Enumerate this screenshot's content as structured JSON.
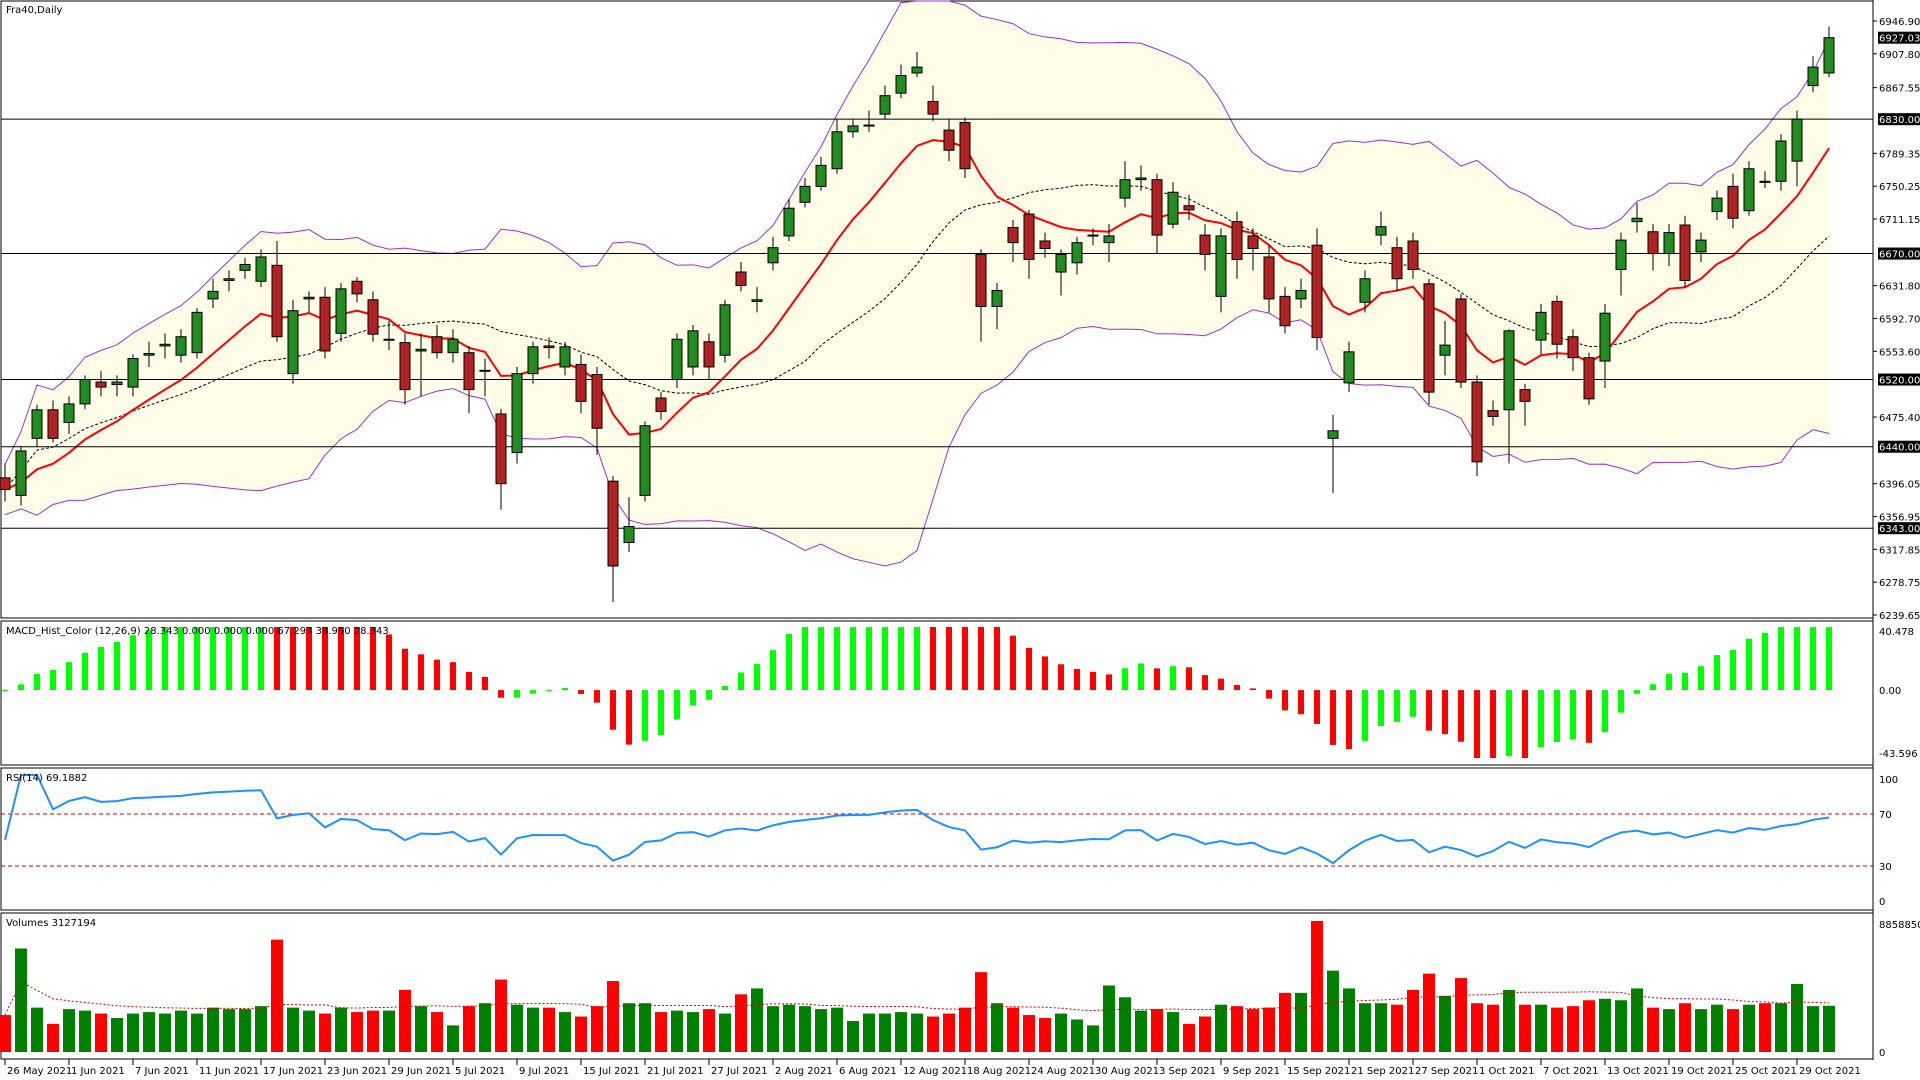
{
  "chart_data": {
    "type": "candlestick",
    "title": "Fra40,Daily",
    "colors": {
      "bull": "#228B22",
      "bear": "#B22222",
      "band": "#9932CC",
      "band_fill": "#FFFDE8",
      "ma_fast": "#FF0000",
      "ma_mid": "#000000",
      "macd_up": "#00FF00",
      "macd_down": "#FF0000",
      "rsi": "#1E90FF",
      "level": "#CC0000",
      "vol_up": "#008000",
      "vol_down": "#FF0000"
    },
    "indicators": {
      "bollinger": {
        "period": 20,
        "deviation": 2
      },
      "ema_period": 10
    },
    "price_axis": {
      "range": [
        6239.65,
        6946.9
      ],
      "ticks": [
        "6946.90",
        "6907.80",
        "6867.55",
        "6789.35",
        "6750.25",
        "6711.15",
        "6631.80",
        "6592.70",
        "6553.60",
        "6475.40",
        "6396.05",
        "6356.95",
        "6317.85",
        "6278.75",
        "6239.65"
      ],
      "levels": [
        6830.0,
        6670.0,
        6520.0,
        6440.0,
        6343.0
      ],
      "level_labels": [
        "6830.00",
        "6670.00",
        "6520.00",
        "6440.00",
        "6343.00"
      ],
      "last_price": "6927.03"
    },
    "dates": [
      "26 May 2021",
      "1 Jun 2021",
      "7 Jun 2021",
      "11 Jun 2021",
      "17 Jun 2021",
      "23 Jun 2021",
      "29 Jun 2021",
      "5 Jul 2021",
      "9 Jul 2021",
      "15 Jul 2021",
      "21 Jul 2021",
      "27 Jul 2021",
      "2 Aug 2021",
      "6 Aug 2021",
      "12 Aug 2021",
      "18 Aug 2021",
      "24 Aug 2021",
      "30 Aug 2021",
      "3 Sep 2021",
      "9 Sep 2021",
      "15 Sep 2021",
      "21 Sep 2021",
      "27 Sep 2021",
      "1 Oct 2021",
      "7 Oct 2021",
      "13 Oct 2021",
      "19 Oct 2021",
      "25 Oct 2021",
      "29 Oct 2021"
    ],
    "ohlc": [
      [
        6403,
        6420,
        6375,
        6389
      ],
      [
        6382,
        6440,
        6370,
        6435
      ],
      [
        6450,
        6490,
        6440,
        6484
      ],
      [
        6484,
        6495,
        6445,
        6450
      ],
      [
        6469,
        6500,
        6455,
        6491
      ],
      [
        6491,
        6525,
        6485,
        6520
      ],
      [
        6517,
        6530,
        6500,
        6511
      ],
      [
        6514,
        6525,
        6500,
        6517
      ],
      [
        6511,
        6550,
        6500,
        6545
      ],
      [
        6549,
        6565,
        6535,
        6551
      ],
      [
        6560,
        6575,
        6545,
        6562
      ],
      [
        6549,
        6580,
        6540,
        6571
      ],
      [
        6552,
        6605,
        6545,
        6600
      ],
      [
        6616,
        6640,
        6605,
        6625
      ],
      [
        6638,
        6650,
        6625,
        6640
      ],
      [
        6650,
        6665,
        6640,
        6657
      ],
      [
        6637,
        6675,
        6630,
        6666
      ],
      [
        6656,
        6685,
        6565,
        6571
      ],
      [
        6527,
        6615,
        6515,
        6602
      ],
      [
        6616,
        6625,
        6600,
        6618
      ],
      [
        6618,
        6630,
        6545,
        6554
      ],
      [
        6575,
        6635,
        6565,
        6628
      ],
      [
        6637,
        6642,
        6612,
        6622
      ],
      [
        6615,
        6625,
        6565,
        6574
      ],
      [
        6567,
        6590,
        6555,
        6568
      ],
      [
        6564,
        6575,
        6490,
        6508
      ],
      [
        6554,
        6575,
        6500,
        6556
      ],
      [
        6571,
        6585,
        6545,
        6552
      ],
      [
        6552,
        6580,
        6540,
        6568
      ],
      [
        6552,
        6560,
        6480,
        6508
      ],
      [
        6530,
        6545,
        6500,
        6531
      ],
      [
        6479,
        6485,
        6365,
        6396
      ],
      [
        6433,
        6535,
        6420,
        6527
      ],
      [
        6527,
        6565,
        6515,
        6559
      ],
      [
        6560,
        6570,
        6545,
        6558
      ],
      [
        6535,
        6565,
        6525,
        6559
      ],
      [
        6538,
        6550,
        6480,
        6494
      ],
      [
        6526,
        6535,
        6430,
        6462
      ],
      [
        6399,
        6405,
        6255,
        6298
      ],
      [
        6326,
        6380,
        6315,
        6345
      ],
      [
        6382,
        6470,
        6375,
        6465
      ],
      [
        6498,
        6505,
        6472,
        6482
      ],
      [
        6520,
        6575,
        6510,
        6568
      ],
      [
        6535,
        6585,
        6525,
        6578
      ],
      [
        6565,
        6575,
        6520,
        6535
      ],
      [
        6549,
        6615,
        6540,
        6609
      ],
      [
        6648,
        6660,
        6625,
        6632
      ],
      [
        6613,
        6630,
        6600,
        6615
      ],
      [
        6659,
        6690,
        6650,
        6677
      ],
      [
        6691,
        6735,
        6685,
        6724
      ],
      [
        6731,
        6760,
        6725,
        6750
      ],
      [
        6750,
        6785,
        6745,
        6775
      ],
      [
        6771,
        6830,
        6765,
        6815
      ],
      [
        6815,
        6830,
        6808,
        6822
      ],
      [
        6822,
        6840,
        6815,
        6823
      ],
      [
        6836,
        6870,
        6830,
        6858
      ],
      [
        6861,
        6895,
        6855,
        6882
      ],
      [
        6885,
        6910,
        6880,
        6892
      ],
      [
        6851,
        6870,
        6828,
        6836
      ],
      [
        6817,
        6830,
        6780,
        6793
      ],
      [
        6826,
        6832,
        6760,
        6771
      ],
      [
        6669,
        6675,
        6565,
        6607
      ],
      [
        6607,
        6635,
        6580,
        6626
      ],
      [
        6701,
        6710,
        6660,
        6683
      ],
      [
        6717,
        6722,
        6640,
        6663
      ],
      [
        6685,
        6695,
        6665,
        6676
      ],
      [
        6648,
        6675,
        6620,
        6669
      ],
      [
        6659,
        6690,
        6645,
        6683
      ],
      [
        6691,
        6700,
        6680,
        6692
      ],
      [
        6683,
        6705,
        6660,
        6691
      ],
      [
        6736,
        6780,
        6725,
        6758
      ],
      [
        6758,
        6775,
        6745,
        6760
      ],
      [
        6758,
        6765,
        6670,
        6692
      ],
      [
        6705,
        6755,
        6700,
        6743
      ],
      [
        6727,
        6740,
        6710,
        6722
      ],
      [
        6692,
        6705,
        6650,
        6669
      ],
      [
        6619,
        6700,
        6600,
        6691
      ],
      [
        6708,
        6720,
        6640,
        6663
      ],
      [
        6691,
        6700,
        6650,
        6676
      ],
      [
        6666,
        6680,
        6600,
        6616
      ],
      [
        6619,
        6630,
        6575,
        6584
      ],
      [
        6616,
        6640,
        6605,
        6626
      ],
      [
        6680,
        6700,
        6555,
        6570
      ],
      [
        6450,
        6478,
        6385,
        6459
      ],
      [
        6516,
        6565,
        6505,
        6553
      ],
      [
        6612,
        6650,
        6600,
        6640
      ],
      [
        6692,
        6720,
        6680,
        6702
      ],
      [
        6677,
        6690,
        6625,
        6640
      ],
      [
        6685,
        6695,
        6640,
        6651
      ],
      [
        6634,
        6640,
        6490,
        6505
      ],
      [
        6549,
        6590,
        6525,
        6561
      ],
      [
        6616,
        6622,
        6510,
        6517
      ],
      [
        6517,
        6525,
        6405,
        6422
      ],
      [
        6483,
        6495,
        6465,
        6476
      ],
      [
        6484,
        6580,
        6420,
        6578
      ],
      [
        6508,
        6515,
        6465,
        6494
      ],
      [
        6567,
        6610,
        6550,
        6600
      ],
      [
        6613,
        6620,
        6545,
        6562
      ],
      [
        6571,
        6580,
        6530,
        6546
      ],
      [
        6546,
        6552,
        6490,
        6497
      ],
      [
        6542,
        6610,
        6510,
        6599
      ],
      [
        6651,
        6695,
        6620,
        6686
      ],
      [
        6708,
        6730,
        6695,
        6712
      ],
      [
        6696,
        6705,
        6650,
        6670
      ],
      [
        6670,
        6705,
        6655,
        6695
      ],
      [
        6704,
        6715,
        6630,
        6638
      ],
      [
        6672,
        6695,
        6660,
        6686
      ],
      [
        6720,
        6745,
        6710,
        6736
      ],
      [
        6750,
        6765,
        6700,
        6712
      ],
      [
        6721,
        6780,
        6715,
        6771
      ],
      [
        6756,
        6768,
        6748,
        6755
      ],
      [
        6756,
        6812,
        6745,
        6804
      ],
      [
        6780,
        6840,
        6750,
        6830
      ],
      [
        6870,
        6905,
        6862,
        6892
      ],
      [
        6885,
        6940,
        6880,
        6927.03
      ]
    ],
    "volumes": [
      2.5,
      7.0,
      3.0,
      1.9,
      2.9,
      2.8,
      2.6,
      2.3,
      2.6,
      2.7,
      2.6,
      2.8,
      2.6,
      3.0,
      2.9,
      2.9,
      3.1,
      7.6,
      3.0,
      2.8,
      2.6,
      3.0,
      2.7,
      2.8,
      2.8,
      4.2,
      3.1,
      2.7,
      1.8,
      3.1,
      3.3,
      4.9,
      3.2,
      3.0,
      3.0,
      2.7,
      2.4,
      3.1,
      4.8,
      3.3,
      3.3,
      2.7,
      2.8,
      2.7,
      2.9,
      2.6,
      3.9,
      4.3,
      3.1,
      3.2,
      3.1,
      2.9,
      3.0,
      2.1,
      2.6,
      2.6,
      2.7,
      2.6,
      2.4,
      2.6,
      3.0,
      5.4,
      3.3,
      3.0,
      2.5,
      2.3,
      2.6,
      2.2,
      1.8,
      4.5,
      3.7,
      2.8,
      2.9,
      2.7,
      1.9,
      2.4,
      3.2,
      3.1,
      2.9,
      3.0,
      4.0,
      4.0,
      8.86,
      5.5,
      4.3,
      3.3,
      3.3,
      3.2,
      4.2,
      5.3,
      3.8,
      5.0,
      3.3,
      3.2,
      4.2,
      3.2,
      3.2,
      3.0,
      3.1,
      3.5,
      3.6,
      3.5,
      4.3,
      3.0,
      2.9,
      3.3,
      2.9,
      3.2,
      2.9,
      3.2,
      3.3,
      3.3,
      4.6,
      3.1,
      3.127194
    ],
    "volume_unit": "millions",
    "macd": {
      "label": "MACD_Hist_Color (12,26,9)  28.343 0.000 0.000 0.000 67.293 38.950 28.343",
      "range": [
        -43.596,
        40.478
      ],
      "ticks": [
        "40.478",
        "0.00",
        "-43.596"
      ]
    },
    "rsi": {
      "label": "RSI(14) 69.1882",
      "range": [
        0,
        100
      ],
      "levels": [
        70,
        30
      ],
      "ticks": [
        "100",
        "70",
        "30",
        "0"
      ]
    },
    "volume_panel": {
      "label": "Volumes 3127194",
      "range": [
        0,
        8858850
      ],
      "ticks": [
        "8858850",
        "0"
      ]
    }
  }
}
